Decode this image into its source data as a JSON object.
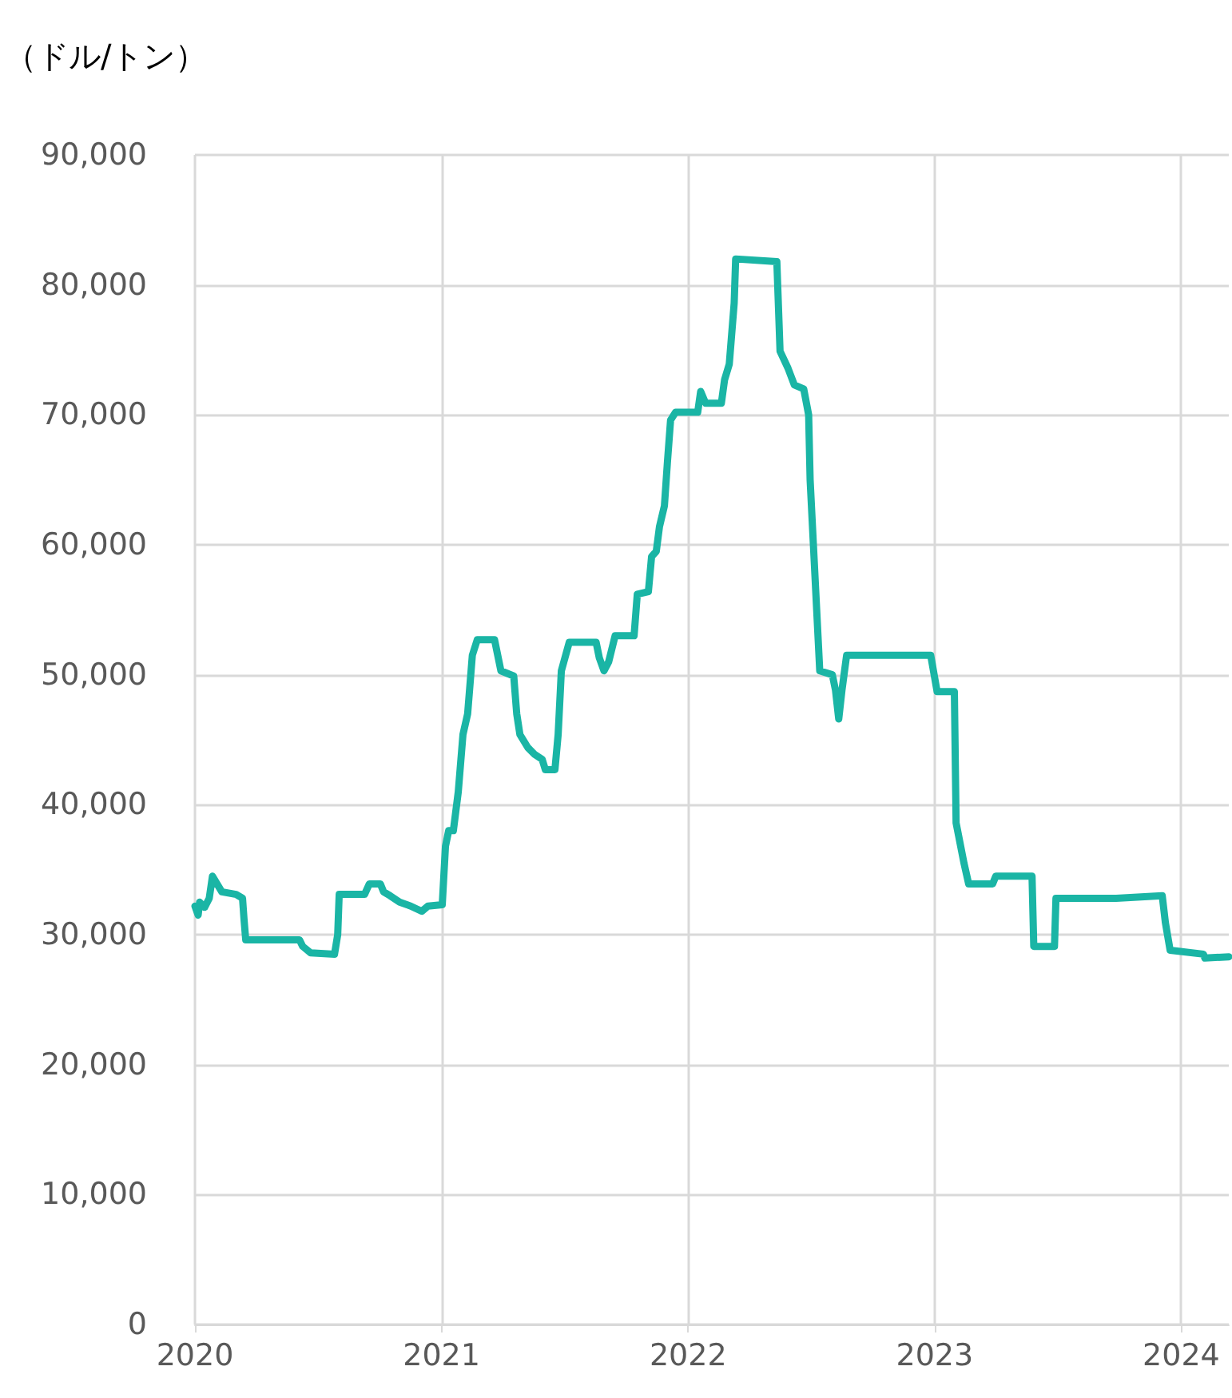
{
  "chart_data": {
    "type": "line",
    "ylabel": "（ドル/トン）",
    "x": [
      2020.0,
      2020.013,
      2020.019,
      2020.039,
      2020.058,
      2020.071,
      2020.09,
      2020.109,
      2020.167,
      2020.193,
      2020.199,
      2020.206,
      2020.424,
      2020.437,
      2020.469,
      2020.566,
      2020.579,
      2020.585,
      2020.688,
      2020.707,
      2020.752,
      2020.765,
      2020.791,
      2020.83,
      2020.875,
      2020.92,
      2020.945,
      2021.003,
      2021.016,
      2021.029,
      2021.048,
      2021.068,
      2021.087,
      2021.106,
      2021.125,
      2021.145,
      2021.215,
      2021.241,
      2021.293,
      2021.305,
      2021.318,
      2021.35,
      2021.376,
      2021.408,
      2021.421,
      2021.46,
      2021.473,
      2021.486,
      2021.518,
      2021.627,
      2021.64,
      2021.659,
      2021.678,
      2021.704,
      2021.781,
      2021.794,
      2021.839,
      2021.852,
      2021.871,
      2021.884,
      2021.904,
      2021.916,
      2021.929,
      2021.949,
      2022.039,
      2022.051,
      2022.071,
      2022.135,
      2022.148,
      2022.167,
      2022.187,
      2022.193,
      2022.36,
      2022.373,
      2022.405,
      2022.431,
      2022.469,
      2022.489,
      2022.495,
      2022.508,
      2022.534,
      2022.585,
      2022.598,
      2022.611,
      2022.624,
      2022.643,
      2022.984,
      2023.01,
      2023.08,
      2023.087,
      2023.119,
      2023.138,
      2023.235,
      2023.248,
      2023.395,
      2023.402,
      2023.486,
      2023.492,
      2023.736,
      2023.923,
      2023.936,
      2023.955,
      2024.09,
      2024.096,
      2024.193
    ],
    "series": [
      {
        "color": "#1ab5a5",
        "values": [
          32200,
          31500,
          32500,
          32100,
          32800,
          34500,
          33900,
          33300,
          33100,
          32800,
          31200,
          29600,
          29600,
          29100,
          28600,
          28500,
          30000,
          33100,
          33100,
          33900,
          33900,
          33300,
          33000,
          32500,
          32200,
          31800,
          32200,
          32300,
          36800,
          38000,
          38000,
          41000,
          45400,
          47000,
          51500,
          52700,
          52700,
          50300,
          49900,
          47000,
          45400,
          44400,
          43900,
          43500,
          42700,
          42700,
          45400,
          50300,
          52500,
          52500,
          51300,
          50300,
          51000,
          53000,
          53000,
          56200,
          56400,
          59100,
          59500,
          61400,
          63000,
          66300,
          69600,
          70200,
          70200,
          71800,
          70900,
          70900,
          72700,
          73900,
          78600,
          82000,
          81800,
          74900,
          73600,
          72300,
          72000,
          70000,
          65000,
          60100,
          50300,
          50000,
          48800,
          46600,
          48800,
          51500,
          51500,
          48700,
          48700,
          38600,
          35500,
          33900,
          33900,
          34500,
          34500,
          29100,
          29100,
          32800,
          32800,
          33000,
          30900,
          28800,
          28500,
          28200,
          28300
        ]
      }
    ],
    "xlim": [
      2020,
      2024.193
    ],
    "xticks": [
      2020,
      2021,
      2022,
      2023,
      2024
    ],
    "ylim": [
      0,
      90000
    ],
    "yticks": [
      0,
      {
        "value": 10000,
        "label": "10,000"
      },
      {
        "value": 20000,
        "label": "20,000"
      },
      {
        "value": 30000,
        "label": "30,000"
      },
      {
        "value": 40000,
        "label": "40,000"
      },
      {
        "value": 50000,
        "label": "50,000"
      },
      {
        "value": 60000,
        "label": "60,000"
      },
      {
        "value": 70000,
        "label": "70,000"
      },
      {
        "value": 80000,
        "label": "80,000"
      },
      {
        "value": 90000,
        "label": "90,000"
      }
    ],
    "grid": true,
    "marker": "none",
    "line_style": "solid"
  }
}
